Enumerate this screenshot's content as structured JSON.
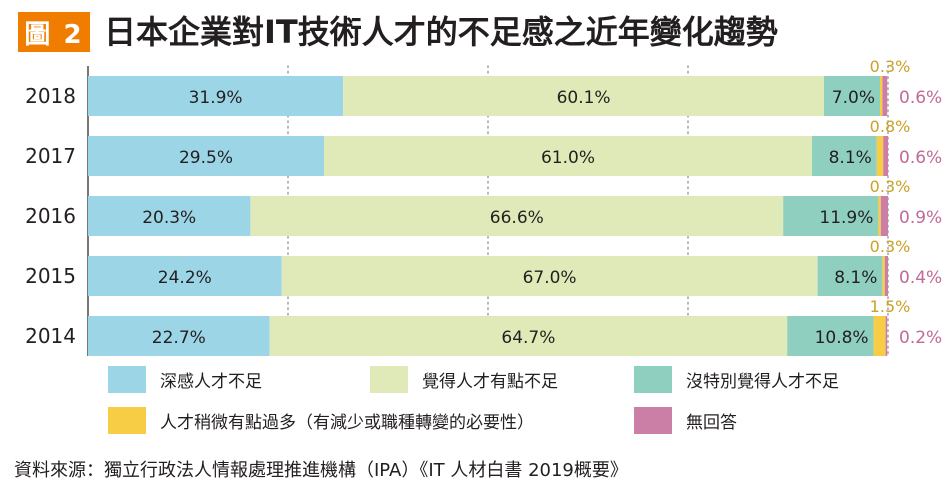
{
  "figure": {
    "badge": "圖 2",
    "title": "日本企業對IT技術人才的不足感之近年變化趨勢",
    "source": "資料來源：獨立行政法人情報處理推進機構（IPA）《IT 人材白書 2019概要》"
  },
  "colors": {
    "badge": "#f07c00",
    "series": [
      "#9cd6e6",
      "#dfeab8",
      "#8fcfc0",
      "#f7cd46",
      "#cc7fa6"
    ],
    "label_small": "#c9a227",
    "label_noanswer": "#c06a98"
  },
  "chart_data": {
    "type": "bar",
    "orientation": "horizontal",
    "stacked": true,
    "unit": "%",
    "categories": [
      "2018",
      "2017",
      "2016",
      "2015",
      "2014"
    ],
    "xlim": [
      0,
      100
    ],
    "grid": "dotted vertical",
    "legend_position": "bottom",
    "series": [
      {
        "name": "深感人才不足",
        "values": [
          31.9,
          29.5,
          20.3,
          24.2,
          22.7
        ],
        "labels": [
          "31.9%",
          "29.5%",
          "20.3%",
          "24.2%",
          "22.7%"
        ]
      },
      {
        "name": "覺得人才有點不足",
        "values": [
          60.1,
          61.0,
          66.6,
          67.0,
          64.7
        ],
        "labels": [
          "60.1%",
          "61.0%",
          "66.6%",
          "67.0%",
          "64.7%"
        ]
      },
      {
        "name": "沒特別覺得人才不足",
        "values": [
          7.0,
          8.1,
          11.9,
          8.1,
          10.8
        ],
        "labels": [
          "7.0%",
          "8.1%",
          "11.9%",
          "8.1%",
          "10.8%"
        ]
      },
      {
        "name": "人才稍微有點過多（有減少或職種轉變的必要性）",
        "values": [
          0.3,
          0.8,
          0.3,
          0.3,
          1.5
        ],
        "labels": [
          "0.3%",
          "0.8%",
          "0.3%",
          "0.3%",
          "1.5%"
        ]
      },
      {
        "name": "無回答",
        "values": [
          0.6,
          0.6,
          0.9,
          0.4,
          0.2
        ],
        "labels": [
          "0.6%",
          "0.6%",
          "0.9%",
          "0.4%",
          "0.2%"
        ]
      }
    ]
  }
}
